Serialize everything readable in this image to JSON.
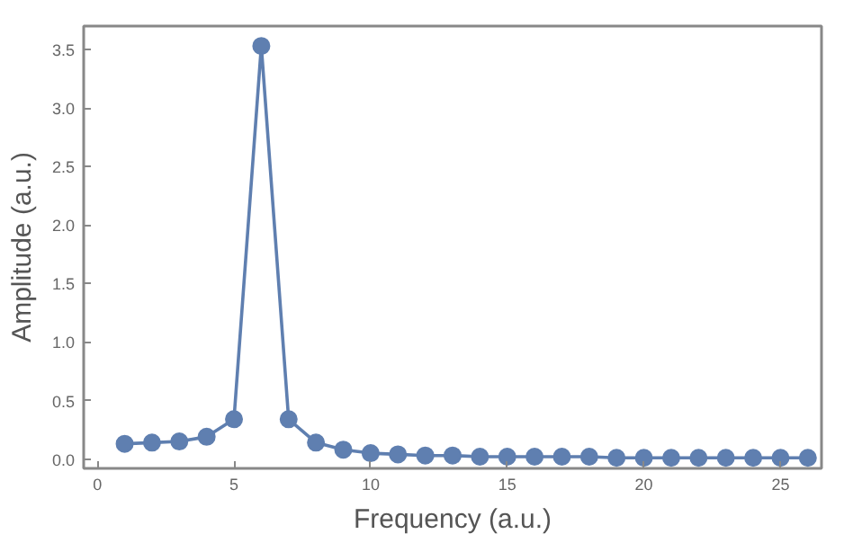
{
  "chart_data": {
    "type": "line",
    "xlabel": "Frequency (a.u.)",
    "ylabel": "Amplitude (a.u.)",
    "x": [
      1,
      2,
      3,
      4,
      5,
      6,
      7,
      8,
      9,
      10,
      11,
      12,
      13,
      14,
      15,
      16,
      17,
      18,
      19,
      20,
      21,
      22,
      23,
      24,
      25,
      26
    ],
    "series": [
      {
        "color": "#5f7fb0",
        "values": [
          0.13,
          0.14,
          0.15,
          0.19,
          0.34,
          3.53,
          0.34,
          0.14,
          0.08,
          0.05,
          0.04,
          0.03,
          0.03,
          0.02,
          0.02,
          0.02,
          0.02,
          0.02,
          0.01,
          0.01,
          0.01,
          0.01,
          0.01,
          0.01,
          0.01,
          0.01
        ]
      }
    ],
    "xlim": [
      -0.5,
      26.5
    ],
    "ylim": [
      -0.08,
      3.7
    ],
    "xticks": [
      0,
      5,
      10,
      15,
      20,
      25
    ],
    "yticks": [
      {
        "value": 0,
        "label": "0.0"
      },
      {
        "value": 0.5,
        "label": "0.5"
      },
      {
        "value": 1,
        "label": "1.0"
      },
      {
        "value": 1.5,
        "label": "1.5"
      },
      {
        "value": 2,
        "label": "2.0"
      },
      {
        "value": 2.5,
        "label": "2.5"
      },
      {
        "value": 3,
        "label": "3.0"
      },
      {
        "value": 3.5,
        "label": "3.5"
      }
    ],
    "grid": false,
    "marker": "circle",
    "line_style": "solid"
  }
}
